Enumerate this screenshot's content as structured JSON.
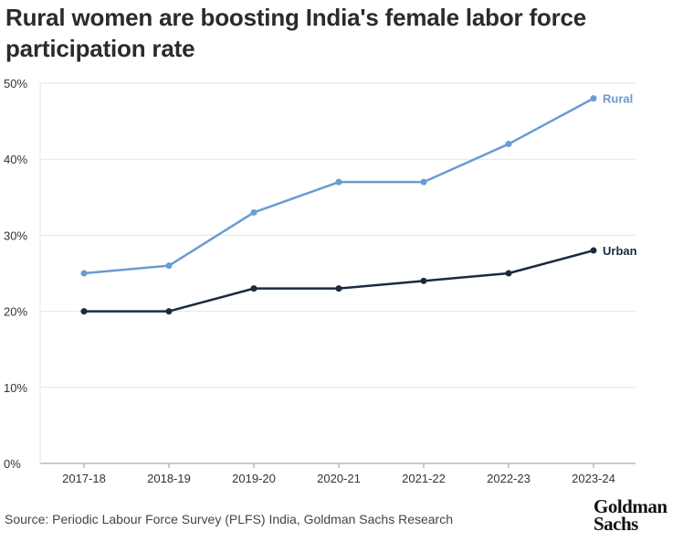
{
  "chart_data": {
    "type": "line",
    "title": "Rural women are boosting India's female labor force participation rate",
    "categories": [
      "2017-18",
      "2018-19",
      "2019-20",
      "2020-21",
      "2021-22",
      "2022-23",
      "2023-24"
    ],
    "series": [
      {
        "name": "Rural",
        "values": [
          25,
          26,
          33,
          37,
          37,
          42,
          48
        ],
        "color": "#6b9bd2"
      },
      {
        "name": "Urban",
        "values": [
          20,
          20,
          23,
          23,
          24,
          25,
          28
        ],
        "color": "#1b2a41"
      }
    ],
    "yticks": [
      0,
      10,
      20,
      30,
      40,
      50
    ],
    "ytick_labels": [
      "0%",
      "10%",
      "20%",
      "30%",
      "40%",
      "50%"
    ],
    "ylim": [
      0,
      50
    ],
    "xlabel": "",
    "ylabel": "",
    "grid": true,
    "gridline_color": "#e6e6e6",
    "axis_color": "#999999"
  },
  "source": "Source: Periodic Labour Force Survey (PLFS) India, Goldman Sachs Research",
  "logo": {
    "line1": "Goldman",
    "line2": "Sachs"
  }
}
